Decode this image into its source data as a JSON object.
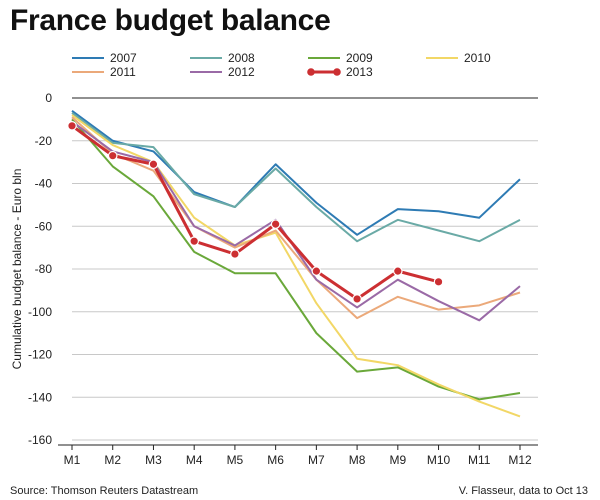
{
  "chart_data": {
    "type": "line",
    "title": "France budget balance",
    "ylabel": "Cumulative budget balance - Euro bln",
    "xlabel": "",
    "categories": [
      "M1",
      "M2",
      "M3",
      "M4",
      "M5",
      "M6",
      "M7",
      "M8",
      "M9",
      "M10",
      "M11",
      "M12"
    ],
    "ylim": [
      -160,
      0
    ],
    "yticks": [
      0,
      -20,
      -40,
      -60,
      -80,
      -100,
      -120,
      -140,
      -160
    ],
    "grid": "horizontal",
    "legend_position": "top",
    "series": [
      {
        "name": "2007",
        "color": "#2e7bb4",
        "markers": false,
        "values": [
          -6,
          -20,
          -25,
          -44,
          -51,
          -31,
          -49,
          -64,
          -52,
          -53,
          -56,
          -38
        ]
      },
      {
        "name": "2008",
        "color": "#6aaaa6",
        "markers": false,
        "values": [
          -7,
          -21,
          -23,
          -45,
          -51,
          -33,
          -51,
          -67,
          -57,
          -62,
          -67,
          -57
        ]
      },
      {
        "name": "2009",
        "color": "#6aa83a",
        "markers": false,
        "values": [
          -10,
          -32,
          -46,
          -72,
          -82,
          -82,
          -110,
          -128,
          -126,
          -135,
          -141,
          -138
        ]
      },
      {
        "name": "2010",
        "color": "#f2d766",
        "markers": false,
        "values": [
          -8,
          -22,
          -30,
          -56,
          -69,
          -63,
          -96,
          -122,
          -125,
          -134,
          -142,
          -149
        ]
      },
      {
        "name": "2011",
        "color": "#eba97a",
        "markers": false,
        "values": [
          -9,
          -26,
          -34,
          -60,
          -70,
          -62,
          -85,
          -103,
          -93,
          -99,
          -97,
          -91
        ]
      },
      {
        "name": "2012",
        "color": "#9a6aa6",
        "markers": false,
        "values": [
          -11,
          -25,
          -30,
          -60,
          -69,
          -57,
          -85,
          -98,
          -85,
          -95,
          -104,
          -88
        ]
      },
      {
        "name": "2013",
        "color": "#cc2f32",
        "markers": true,
        "values": [
          -13,
          -27,
          -31,
          -67,
          -73,
          -59,
          -81,
          -94,
          -81,
          -86,
          null,
          null
        ]
      }
    ]
  },
  "footer": {
    "source": "Source: Thomson Reuters Datastream",
    "credit": "V. Flasseur, data to Oct 13"
  }
}
